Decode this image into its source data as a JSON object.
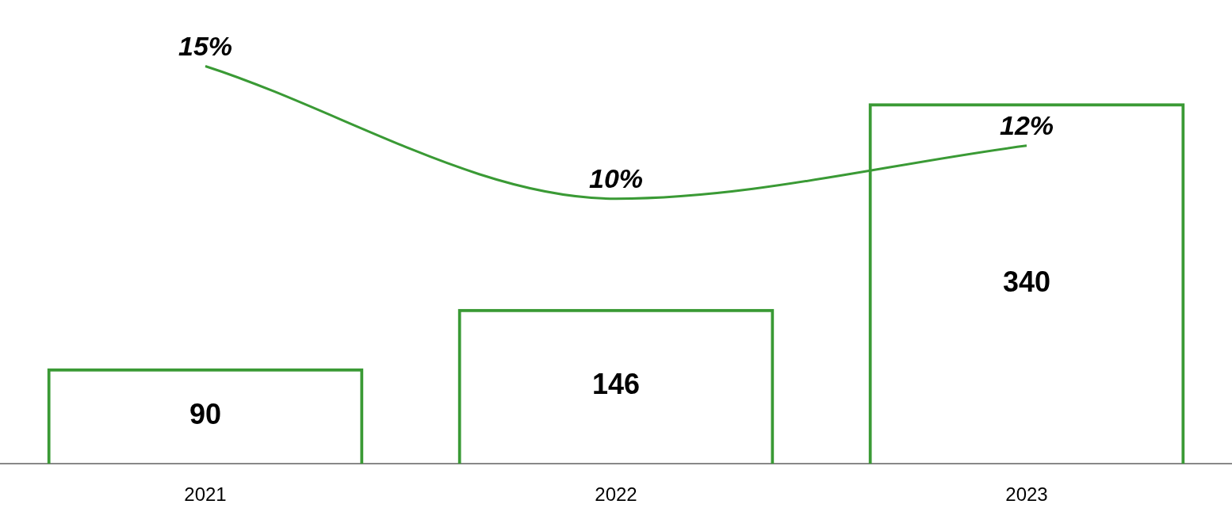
{
  "chart_data": {
    "type": "bar",
    "categories": [
      "2021",
      "2022",
      "2023"
    ],
    "series": [
      {
        "color": "#3a9a35",
        "values": [
          90,
          146,
          340
        ]
      },
      {
        "type": "line",
        "axis": "y2",
        "color": "#3a9a35",
        "values": [
          15,
          10,
          12
        ],
        "value_labels": [
          "15%",
          "10%",
          "12%"
        ]
      }
    ],
    "tick_labels": "x",
    "data_labels": true,
    "grid": false,
    "legend": false,
    "marker": "none",
    "line_style": "solid"
  }
}
